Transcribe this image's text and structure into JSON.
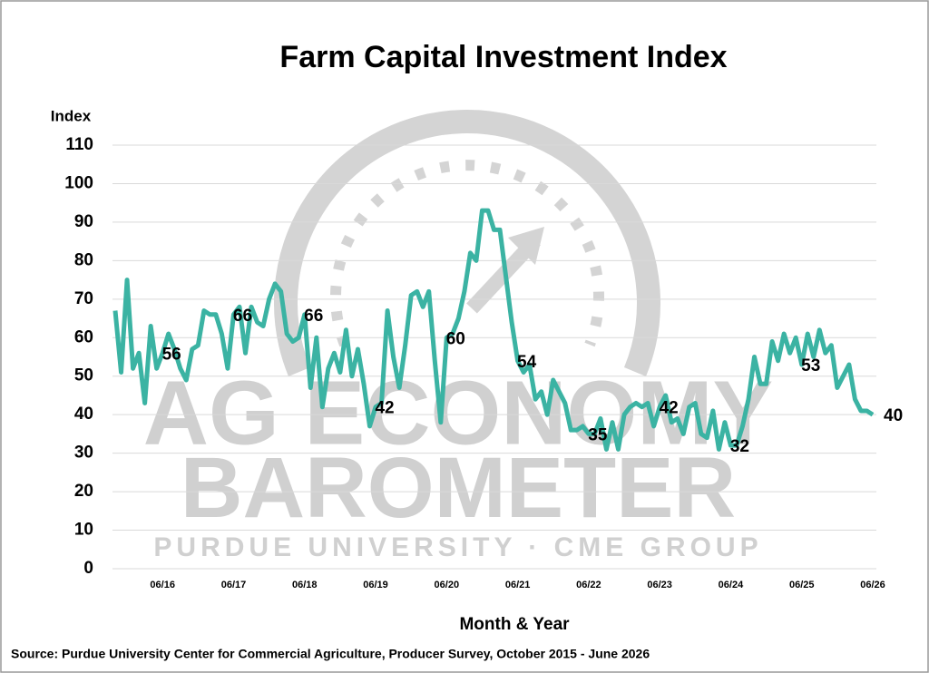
{
  "chart_data": {
    "type": "line",
    "title": "Farm Capital Investment Index",
    "y_label": "Index",
    "x_label": "Month & Year",
    "source": "Source: Purdue University Center for Commercial Agriculture, Producer Survey, October 2015 - June 2026",
    "watermark": [
      "AG ECONOMY",
      "BAROMETER",
      "PURDUE UNIVERSITY · CME GROUP"
    ],
    "ylim": [
      0,
      110
    ],
    "yticks": [
      0,
      10,
      20,
      30,
      40,
      50,
      60,
      70,
      80,
      90,
      100,
      110
    ],
    "grid": true,
    "categories": [
      null,
      null,
      null,
      null,
      null,
      null,
      null,
      null,
      "06/16",
      null,
      null,
      null,
      null,
      null,
      null,
      null,
      null,
      null,
      null,
      null,
      "06/17",
      null,
      null,
      null,
      null,
      null,
      null,
      null,
      null,
      null,
      null,
      null,
      "06/18",
      null,
      null,
      null,
      null,
      null,
      null,
      null,
      null,
      null,
      null,
      null,
      "06/19",
      null,
      null,
      null,
      null,
      null,
      null,
      null,
      null,
      null,
      null,
      null,
      "06/20",
      null,
      null,
      null,
      null,
      null,
      null,
      null,
      null,
      null,
      null,
      null,
      "06/21",
      null,
      null,
      null,
      null,
      null,
      null,
      null,
      null,
      null,
      null,
      null,
      "06/22",
      null,
      null,
      null,
      null,
      null,
      null,
      null,
      null,
      null,
      null,
      null,
      "06/23",
      null,
      null,
      null,
      null,
      null,
      null,
      null,
      null,
      null,
      null,
      null,
      "06/24",
      null,
      null,
      null,
      null,
      null,
      null,
      null,
      null,
      null,
      null,
      null,
      "06/25",
      null,
      null,
      null,
      null,
      null,
      null,
      null,
      null,
      null,
      null,
      null,
      "06/26"
    ],
    "series": [
      {
        "color": "#3bb3a3",
        "values": [
          67,
          51,
          75,
          52,
          56,
          43,
          63,
          52,
          56,
          61,
          57,
          52,
          49,
          57,
          58,
          67,
          66,
          66,
          61,
          52,
          66,
          68,
          56,
          68,
          64,
          63,
          70,
          74,
          72,
          61,
          59,
          60,
          66,
          47,
          60,
          42,
          52,
          56,
          51,
          62,
          50,
          57,
          48,
          37,
          42,
          43,
          67,
          55,
          47,
          58,
          71,
          72,
          68,
          72,
          54,
          38,
          60,
          61,
          65,
          72,
          82,
          80,
          93,
          93,
          88,
          88,
          76,
          64,
          54,
          51,
          53,
          44,
          46,
          40,
          49,
          46,
          43,
          36,
          36,
          37,
          35,
          35,
          39,
          31,
          38,
          31,
          40,
          42,
          43,
          42,
          43,
          37,
          42,
          45,
          38,
          39,
          35,
          42,
          43,
          35,
          34,
          41,
          31,
          38,
          32,
          32,
          37,
          44,
          55,
          48,
          48,
          59,
          54,
          61,
          56,
          60,
          53,
          61,
          55,
          62,
          56,
          58,
          47,
          50,
          53,
          44,
          41,
          41,
          40
        ],
        "value_labels": [
          null,
          null,
          null,
          null,
          null,
          null,
          null,
          null,
          "56",
          null,
          null,
          null,
          null,
          null,
          null,
          null,
          null,
          null,
          null,
          null,
          "66",
          null,
          null,
          null,
          null,
          null,
          null,
          null,
          null,
          null,
          null,
          null,
          "66",
          null,
          null,
          null,
          null,
          null,
          null,
          null,
          null,
          null,
          null,
          null,
          "42",
          null,
          null,
          null,
          null,
          null,
          null,
          null,
          null,
          null,
          null,
          null,
          "60",
          null,
          null,
          null,
          null,
          null,
          null,
          null,
          null,
          null,
          null,
          null,
          "54",
          null,
          null,
          null,
          null,
          null,
          null,
          null,
          null,
          null,
          null,
          null,
          "35",
          null,
          null,
          null,
          null,
          null,
          null,
          null,
          null,
          null,
          null,
          null,
          "42",
          null,
          null,
          null,
          null,
          null,
          null,
          null,
          null,
          null,
          null,
          null,
          "32",
          null,
          null,
          null,
          null,
          null,
          null,
          null,
          null,
          null,
          null,
          null,
          "53",
          null,
          null,
          null,
          null,
          null,
          null,
          null,
          null,
          null,
          null,
          null,
          "40"
        ]
      }
    ]
  }
}
